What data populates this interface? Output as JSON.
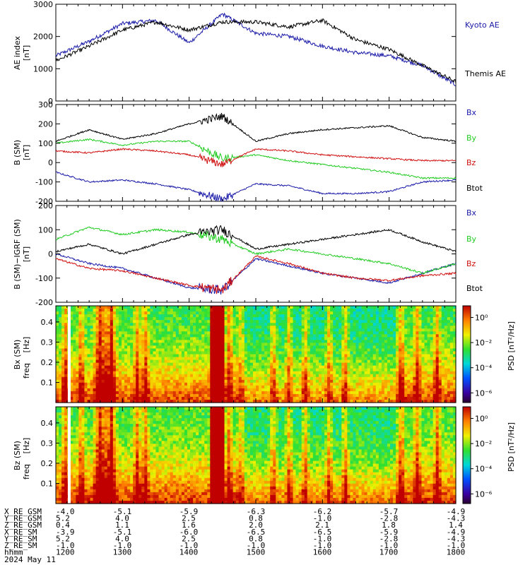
{
  "colors": {
    "blue": "#1a1aa8",
    "black": "#000000",
    "green": "#22cc22",
    "red": "#d01010"
  },
  "panels": {
    "ae": {
      "ylabel_1": "AE index",
      "ylabel_2": "[nT]",
      "ylim": [
        0,
        3000
      ],
      "yticks": [
        "0",
        "1000",
        "2000",
        "3000"
      ],
      "legend": [
        "Kyoto AE",
        "Themis AE"
      ]
    },
    "b": {
      "ylabel_1": "B (SM)",
      "ylabel_2": "[nT]",
      "ylim": [
        -200,
        300
      ],
      "yticks": [
        "-200",
        "-100",
        "0",
        "100",
        "200",
        "300"
      ],
      "legend": [
        "Bx",
        "By",
        "Bz",
        "Btot"
      ]
    },
    "bi": {
      "ylabel_1": "B (SM)−IGRF (SM)",
      "ylabel_2": "[nT]",
      "ylim": [
        -200,
        200
      ],
      "yticks": [
        "-200",
        "-100",
        "0",
        "100",
        "200"
      ],
      "legend": [
        "Bx",
        "By",
        "Bz",
        "Btot"
      ]
    },
    "sx": {
      "ylabel_1": "Bx (SM)",
      "ylabel_2": "freq",
      "ylabel_3": "[Hz]",
      "yticks": [
        "0.1",
        "0.2",
        "0.3",
        "0.4"
      ],
      "cbar_label": "PSD [nT²/Hz]",
      "cbar_ticks": [
        "10⁰",
        "10⁻²",
        "10⁻⁴",
        "10⁻⁶"
      ]
    },
    "sz": {
      "ylabel_1": "Bz (SM)",
      "ylabel_2": "freq",
      "ylabel_3": "[Hz]",
      "yticks": [
        "0.1",
        "0.2",
        "0.3",
        "0.4"
      ],
      "cbar_label": "PSD [nT²/Hz]",
      "cbar_ticks": [
        "10⁰",
        "10⁻²",
        "10⁻⁴",
        "10⁻⁶"
      ]
    }
  },
  "ephemeris": {
    "rows": [
      {
        "label": "X_RE_GSM",
        "values": [
          "-4.0",
          "-5.1",
          "-5.9",
          "-6.3",
          "-6.2",
          "-5.7",
          "-4.9"
        ]
      },
      {
        "label": "Y_RE_GSM",
        "values": [
          "5.2",
          "4.0",
          "2.5",
          "0.8",
          "-1.0",
          "-2.8",
          "-4.3"
        ]
      },
      {
        "label": "Z_RE_GSM",
        "values": [
          "0.4",
          "1.1",
          "1.6",
          "2.0",
          "2.1",
          "1.8",
          "1.4"
        ]
      },
      {
        "label": "X_RE_SM",
        "values": [
          "-3.9",
          "-5.1",
          "-6.0",
          "-6.5",
          "-6.5",
          "-5.9",
          "-4.9"
        ]
      },
      {
        "label": "Y_RE_SM",
        "values": [
          "5.2",
          "4.0",
          "2.5",
          "0.8",
          "-1.0",
          "-2.8",
          "-4.3"
        ]
      },
      {
        "label": "Z_RE_SM",
        "values": [
          "-1.0",
          "-1.0",
          "-1.0",
          "-1.0",
          "-1.0",
          "-1.0",
          "-1.0"
        ]
      },
      {
        "label": "hhmm",
        "values": [
          "1200",
          "1300",
          "1400",
          "1500",
          "1600",
          "1700",
          "1800"
        ]
      }
    ],
    "date": "2024 May 11"
  },
  "chart_data": [
    {
      "type": "line",
      "title": "",
      "ylabel": "AE index [nT]",
      "xlabel": "hhmm",
      "ylim": [
        0,
        3000
      ],
      "x": [
        "1200",
        "1230",
        "1300",
        "1330",
        "1400",
        "1430",
        "1500",
        "1530",
        "1600",
        "1630",
        "1700",
        "1730",
        "1800"
      ],
      "series": [
        {
          "name": "Kyoto AE",
          "values": [
            1400,
            1850,
            2400,
            2500,
            1800,
            2700,
            2100,
            2000,
            1700,
            1500,
            1400,
            1100,
            500
          ]
        },
        {
          "name": "Themis AE",
          "values": [
            1250,
            1700,
            2200,
            2450,
            2200,
            2450,
            2450,
            2300,
            2500,
            1900,
            1600,
            1100,
            600
          ]
        }
      ]
    },
    {
      "type": "line",
      "title": "",
      "ylabel": "B (SM) [nT]",
      "xlabel": "hhmm",
      "ylim": [
        -200,
        300
      ],
      "x": [
        "1200",
        "1230",
        "1300",
        "1330",
        "1400",
        "1430",
        "1500",
        "1530",
        "1600",
        "1630",
        "1700",
        "1730",
        "1800"
      ],
      "series": [
        {
          "name": "Bx",
          "values": [
            -50,
            -100,
            -90,
            -110,
            -140,
            -190,
            -110,
            -120,
            -160,
            -160,
            -150,
            -100,
            -90
          ]
        },
        {
          "name": "By",
          "values": [
            100,
            120,
            90,
            110,
            110,
            20,
            40,
            10,
            -10,
            -30,
            -50,
            -80,
            -80
          ]
        },
        {
          "name": "Bz",
          "values": [
            60,
            50,
            70,
            60,
            40,
            -10,
            70,
            60,
            40,
            30,
            20,
            10,
            10
          ]
        },
        {
          "name": "Btot",
          "values": [
            110,
            170,
            120,
            150,
            200,
            240,
            110,
            150,
            170,
            180,
            190,
            130,
            110
          ]
        }
      ]
    },
    {
      "type": "line",
      "title": "",
      "ylabel": "B (SM)−IGRF (SM) [nT]",
      "xlabel": "hhmm",
      "ylim": [
        -200,
        200
      ],
      "x": [
        "1200",
        "1230",
        "1300",
        "1330",
        "1400",
        "1430",
        "1500",
        "1530",
        "1600",
        "1630",
        "1700",
        "1730",
        "1800"
      ],
      "series": [
        {
          "name": "Bx",
          "values": [
            0,
            -40,
            -60,
            -100,
            -140,
            -150,
            -20,
            -50,
            -80,
            -100,
            -120,
            -80,
            -40
          ]
        },
        {
          "name": "By",
          "values": [
            60,
            110,
            80,
            100,
            90,
            60,
            0,
            20,
            0,
            -20,
            -40,
            -80,
            -40
          ]
        },
        {
          "name": "Bz",
          "values": [
            -20,
            -60,
            -70,
            -100,
            -130,
            -150,
            -10,
            -40,
            -80,
            -100,
            -110,
            -90,
            -80
          ]
        },
        {
          "name": "Btot",
          "values": [
            10,
            40,
            0,
            40,
            80,
            100,
            20,
            40,
            60,
            80,
            100,
            50,
            10
          ]
        }
      ]
    },
    {
      "type": "heatmap",
      "title": "",
      "ylabel": "Bx (SM) freq [Hz]",
      "xlabel": "hhmm",
      "ylim": [
        0,
        0.5
      ],
      "colorbar": "PSD [nT²/Hz]"
    },
    {
      "type": "heatmap",
      "title": "",
      "ylabel": "Bz (SM) freq [Hz]",
      "xlabel": "hhmm",
      "ylim": [
        0,
        0.5
      ],
      "colorbar": "PSD [nT²/Hz]"
    }
  ]
}
